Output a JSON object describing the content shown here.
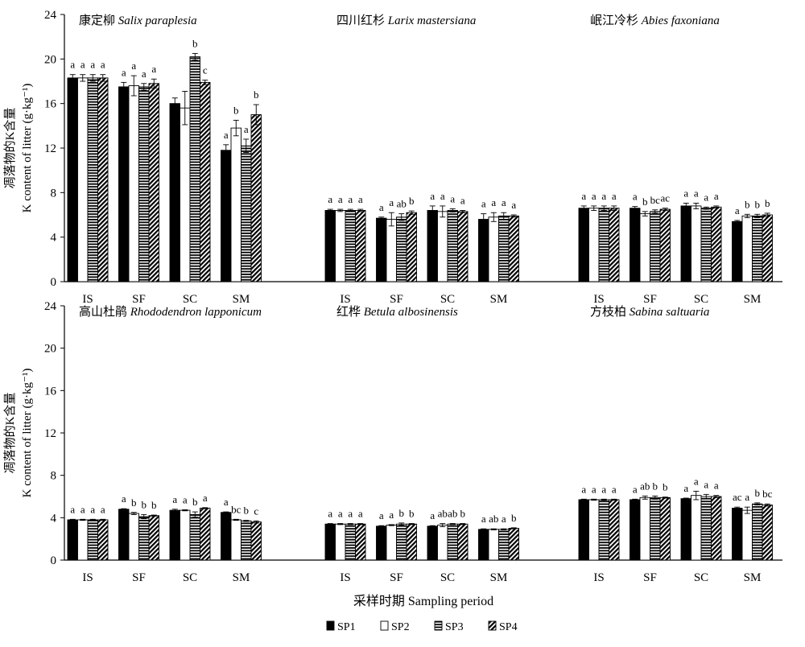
{
  "chart_data": {
    "type": "bar",
    "categories": [
      "IS",
      "SF",
      "SC",
      "SM"
    ],
    "series_names": [
      "SP1",
      "SP2",
      "SP3",
      "SP4"
    ],
    "ylim": [
      0,
      24
    ],
    "yticks": [
      0,
      4,
      8,
      12,
      16,
      20,
      24
    ],
    "ylabel_line1": "凋落物的K含量",
    "ylabel_line2": "K content of litter (g·kg⁻¹)",
    "xlabel": "采样时期 Sampling period",
    "legend_position": "bottom",
    "rows": [
      {
        "panels": [
          {
            "title_cn": "康定柳",
            "title_latin": "Salix paraplesia",
            "values": [
              [
                18.3,
                18.3,
                18.3,
                18.3
              ],
              [
                17.5,
                17.6,
                17.5,
                17.8
              ],
              [
                16.0,
                15.6,
                20.2,
                17.9
              ],
              [
                11.8,
                13.8,
                12.2,
                15.0
              ]
            ],
            "errors": [
              [
                0.3,
                0.3,
                0.3,
                0.3
              ],
              [
                0.4,
                0.9,
                0.3,
                0.4
              ],
              [
                0.5,
                1.5,
                0.3,
                0.2
              ],
              [
                0.5,
                0.7,
                0.6,
                0.9
              ]
            ],
            "letters": [
              [
                "a",
                "a",
                "a",
                "a"
              ],
              [
                "a",
                "a",
                "a",
                "a"
              ],
              [
                "",
                "",
                "b",
                "c"
              ],
              [
                "a",
                "b",
                "a",
                "b"
              ]
            ]
          },
          {
            "title_cn": "四川红杉",
            "title_latin": "Larix mastersiana",
            "values": [
              [
                6.4,
                6.4,
                6.4,
                6.4
              ],
              [
                5.7,
                5.6,
                5.8,
                6.2
              ],
              [
                6.4,
                6.3,
                6.4,
                6.3
              ],
              [
                5.6,
                5.8,
                5.9,
                5.9
              ]
            ],
            "errors": [
              [
                0.1,
                0.1,
                0.1,
                0.1
              ],
              [
                0.1,
                0.6,
                0.3,
                0.15
              ],
              [
                0.4,
                0.5,
                0.15,
                0.1
              ],
              [
                0.5,
                0.4,
                0.3,
                0.1
              ]
            ],
            "letters": [
              [
                "a",
                "a",
                "a",
                "a"
              ],
              [
                "a",
                "a",
                "ab",
                "b"
              ],
              [
                "a",
                "a",
                "a",
                "a"
              ],
              [
                "a",
                "a",
                "a",
                "a"
              ]
            ]
          },
          {
            "title_cn": "岷江冷杉",
            "title_latin": "Abies faxoniana",
            "values": [
              [
                6.6,
                6.6,
                6.6,
                6.6
              ],
              [
                6.6,
                6.1,
                6.3,
                6.5
              ],
              [
                6.8,
                6.8,
                6.6,
                6.7
              ],
              [
                5.4,
                5.9,
                5.9,
                6.0
              ]
            ],
            "errors": [
              [
                0.2,
                0.2,
                0.2,
                0.2
              ],
              [
                0.15,
                0.2,
                0.15,
                0.1
              ],
              [
                0.25,
                0.25,
                0.1,
                0.1
              ],
              [
                0.1,
                0.15,
                0.15,
                0.15
              ]
            ],
            "letters": [
              [
                "a",
                "a",
                "a",
                "a"
              ],
              [
                "a",
                "b",
                "bc",
                "ac"
              ],
              [
                "a",
                "a",
                "a",
                "a"
              ],
              [
                "a",
                "b",
                "b",
                "b"
              ]
            ]
          }
        ]
      },
      {
        "panels": [
          {
            "title_cn": "高山杜鹃",
            "title_latin": "Rhododendron lapponicum",
            "values": [
              [
                3.8,
                3.8,
                3.8,
                3.8
              ],
              [
                4.8,
                4.4,
                4.1,
                4.2
              ],
              [
                4.7,
                4.7,
                4.3,
                4.9
              ],
              [
                4.5,
                3.8,
                3.7,
                3.6
              ]
            ],
            "errors": [
              [
                0.05,
                0.05,
                0.05,
                0.05
              ],
              [
                0.05,
                0.1,
                0.2,
                0.05
              ],
              [
                0.1,
                0.05,
                0.25,
                0.05
              ],
              [
                0.05,
                0.05,
                0.05,
                0.1
              ]
            ],
            "letters": [
              [
                "a",
                "a",
                "a",
                "a"
              ],
              [
                "a",
                "b",
                "b",
                "b"
              ],
              [
                "a",
                "a",
                "b",
                "a"
              ],
              [
                "a",
                "bc",
                "b",
                "c"
              ]
            ]
          },
          {
            "title_cn": "红桦",
            "title_latin": "Betula albosinensis",
            "values": [
              [
                3.4,
                3.4,
                3.4,
                3.4
              ],
              [
                3.2,
                3.3,
                3.4,
                3.4
              ],
              [
                3.2,
                3.3,
                3.4,
                3.4
              ],
              [
                2.9,
                2.9,
                2.9,
                3.0
              ]
            ],
            "errors": [
              [
                0.05,
                0.05,
                0.05,
                0.05
              ],
              [
                0.05,
                0.05,
                0.1,
                0.05
              ],
              [
                0.05,
                0.15,
                0.05,
                0.05
              ],
              [
                0.05,
                0.05,
                0.05,
                0.05
              ]
            ],
            "letters": [
              [
                "a",
                "a",
                "a",
                "a"
              ],
              [
                "a",
                "a",
                "b",
                "b"
              ],
              [
                "a",
                "ab",
                "ab",
                "b"
              ],
              [
                "a",
                "ab",
                "a",
                "b"
              ]
            ]
          },
          {
            "title_cn": "方枝柏",
            "title_latin": "Sabina saltuaria",
            "values": [
              [
                5.7,
                5.7,
                5.7,
                5.7
              ],
              [
                5.7,
                5.9,
                5.9,
                5.9
              ],
              [
                5.8,
                6.1,
                6.0,
                6.0
              ],
              [
                4.9,
                4.7,
                5.3,
                5.2
              ]
            ],
            "errors": [
              [
                0.05,
                0.05,
                0.05,
                0.05
              ],
              [
                0.05,
                0.15,
                0.15,
                0.05
              ],
              [
                0.05,
                0.4,
                0.2,
                0.1
              ],
              [
                0.1,
                0.3,
                0.1,
                0.1
              ]
            ],
            "letters": [
              [
                "a",
                "a",
                "a",
                "a"
              ],
              [
                "a",
                "ab",
                "b",
                "b"
              ],
              [
                "a",
                "a",
                "a",
                "a"
              ],
              [
                "ac",
                "a",
                "b",
                "bc"
              ]
            ]
          }
        ]
      }
    ]
  }
}
